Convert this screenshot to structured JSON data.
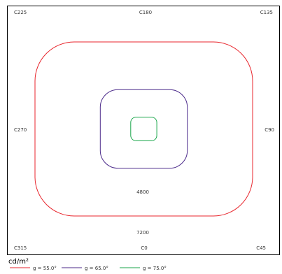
{
  "chart_data": {
    "type": "line",
    "title": "",
    "unit_label": "cd/m²",
    "grid": false,
    "legend_position": "bottom-left",
    "plane_labels": {
      "top_left": "C225",
      "top_center": "C180",
      "top_right": "C135",
      "middle_left": "C270",
      "middle_right": "C90",
      "bottom_left": "C315",
      "bottom_center": "C0",
      "bottom_right": "C45"
    },
    "annotations": [
      "4800",
      "7200"
    ],
    "series": [
      {
        "name": "g = 55.0°",
        "color": "#e8262d",
        "level": 1.0
      },
      {
        "name": "g = 65.0°",
        "color": "#4b2a8a",
        "level": 0.4
      },
      {
        "name": "g = 75.0°",
        "color": "#19a64a",
        "level": 0.12
      }
    ]
  }
}
